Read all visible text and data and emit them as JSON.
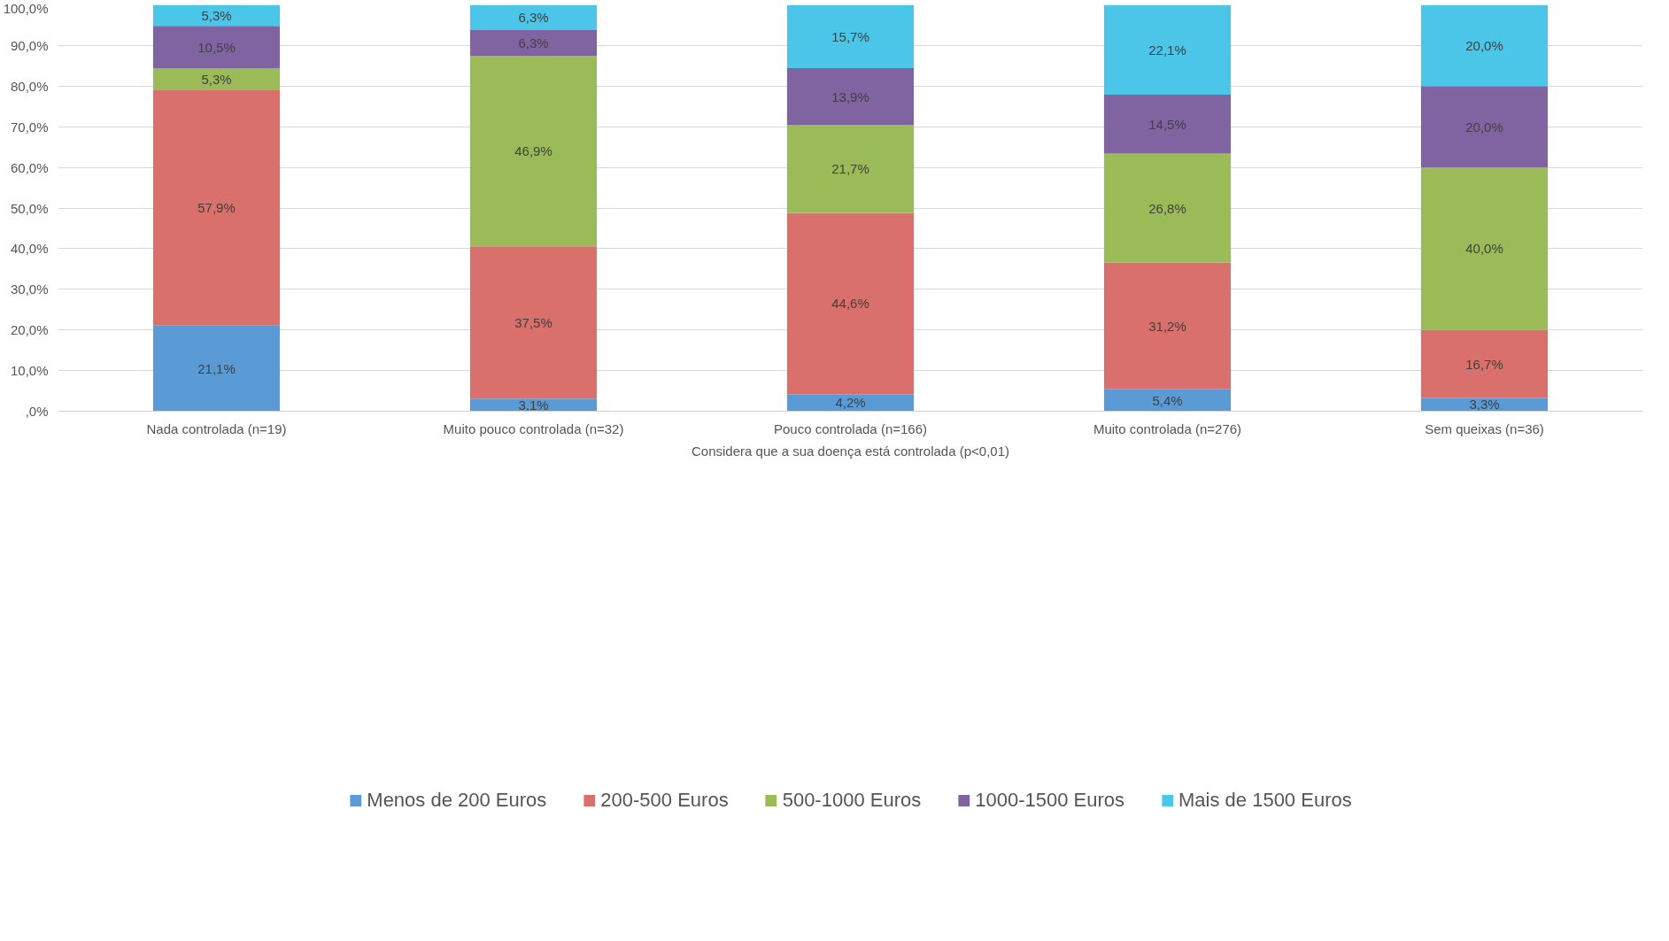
{
  "chart_data": {
    "type": "bar",
    "stacked": true,
    "xlabel": "Considera que a sua doença está controlada (p<0,01)",
    "categories": [
      "Nada controlada (n=19)",
      "Muito pouco controlada (n=32)",
      "Pouco controlada (n=166)",
      "Muito controlada (n=276)",
      "Sem queixas (n=36)"
    ],
    "series": [
      {
        "name": "Menos de 200 Euros",
        "color": "#5b9bd5",
        "values": [
          21.1,
          3.1,
          4.2,
          5.4,
          3.3
        ],
        "value_labels": [
          "21,1%",
          "3,1%",
          "4,2%",
          "5,4%",
          "3,3%"
        ]
      },
      {
        "name": "200-500 Euros",
        "color": "#d9706b",
        "values": [
          57.9,
          37.5,
          44.6,
          31.2,
          16.7
        ],
        "value_labels": [
          "57,9%",
          "37,5%",
          "44,6%",
          "31,2%",
          "16,7%"
        ]
      },
      {
        "name": "500-1000 Euros",
        "color": "#9bbb59",
        "values": [
          5.3,
          46.9,
          21.7,
          26.8,
          40.0
        ],
        "value_labels": [
          "5,3%",
          "46,9%",
          "21,7%",
          "26,8%",
          "40,0%"
        ]
      },
      {
        "name": "1000-1500 Euros",
        "color": "#8064a2",
        "values": [
          10.5,
          6.3,
          13.9,
          14.5,
          20.0
        ],
        "value_labels": [
          "10,5%",
          "6,3%",
          "13,9%",
          "14,5%",
          "20,0%"
        ]
      },
      {
        "name": "Mais de 1500 Euros",
        "color": "#4bc6e8",
        "values": [
          5.3,
          6.3,
          15.7,
          22.1,
          20.0
        ],
        "value_labels": [
          "5,3%",
          "6,3%",
          "15,7%",
          "22,1%",
          "20,0%"
        ]
      }
    ],
    "ylim": [
      0,
      100
    ],
    "yticks": [
      {
        "value": 0,
        "label": ",0%"
      },
      {
        "value": 10,
        "label": "10,0%"
      },
      {
        "value": 20,
        "label": "20,0%"
      },
      {
        "value": 30,
        "label": "30,0%"
      },
      {
        "value": 40,
        "label": "40,0%"
      },
      {
        "value": 50,
        "label": "50,0%"
      },
      {
        "value": 60,
        "label": "60,0%"
      },
      {
        "value": 70,
        "label": "70,0%"
      },
      {
        "value": 80,
        "label": "80,0%"
      },
      {
        "value": 90,
        "label": "90,0%"
      },
      {
        "value": 100,
        "label": "100,0%"
      }
    ],
    "grid": "y",
    "legend": "bottom"
  }
}
